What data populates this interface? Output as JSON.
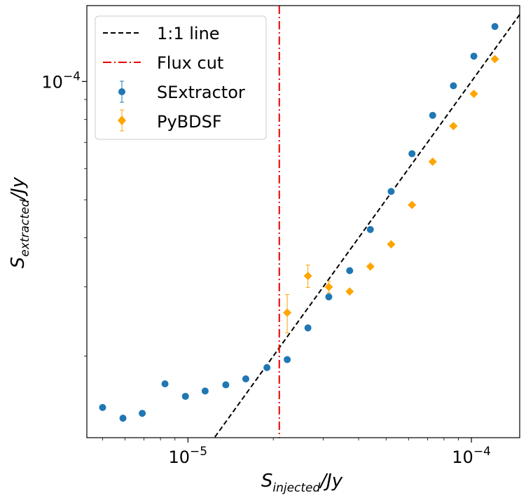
{
  "chart_data": {
    "type": "scatter",
    "title": "",
    "xlabel": {
      "base": "S",
      "sub": "injected",
      "unit": "/Jy"
    },
    "ylabel": {
      "base": "S",
      "sub": "extracted",
      "unit": "/Jy"
    },
    "x_scale": "log",
    "y_scale": "log",
    "xlim": [
      4.4e-06,
      0.000148
    ],
    "ylim": [
      1.24e-05,
      0.000156
    ],
    "grid": false,
    "legend_position": "upper-left",
    "x_tick_labels": [
      {
        "value": 1e-05,
        "base": "10",
        "exp": "−5"
      },
      {
        "value": 0.0001,
        "base": "10",
        "exp": "−4"
      }
    ],
    "y_tick_labels": [
      {
        "value": 0.0001,
        "base": "10",
        "exp": "−4"
      }
    ],
    "series": [
      {
        "name": "1:1 line",
        "kind": "line",
        "color": "#000000",
        "dash": "dashed",
        "x": [
          1.2e-05,
          0.00016
        ],
        "y": [
          1.2e-05,
          0.00016
        ]
      },
      {
        "name": "Flux cut",
        "kind": "vline",
        "color": "#e60000",
        "dash": "dashdot",
        "x": 2.1e-05
      },
      {
        "name": "SExtractor",
        "kind": "scatter",
        "marker": "circle",
        "color": "#1f77b4",
        "x": [
          5e-06,
          5.9e-06,
          6.9e-06,
          8.3e-06,
          9.8e-06,
          1.15e-05,
          1.36e-05,
          1.6e-05,
          1.9e-05,
          2.24e-05,
          2.65e-05,
          3.14e-05,
          3.72e-05,
          4.4e-05,
          5.21e-05,
          6.17e-05,
          7.3e-05,
          8.64e-05,
          0.000102,
          0.000121
        ],
        "y": [
          1.48e-05,
          1.39e-05,
          1.43e-05,
          1.7e-05,
          1.58e-05,
          1.63e-05,
          1.69e-05,
          1.75e-05,
          1.87e-05,
          1.96e-05,
          2.36e-05,
          2.83e-05,
          3.3e-05,
          4.2e-05,
          5.25e-05,
          6.55e-05,
          8.2e-05,
          9.75e-05,
          0.000116,
          0.000138
        ]
      },
      {
        "name": "PyBDSF",
        "kind": "scatter",
        "marker": "diamond",
        "color": "#ffa500",
        "x": [
          2.24e-05,
          2.65e-05,
          3.14e-05,
          3.72e-05,
          4.4e-05,
          5.21e-05,
          6.17e-05,
          7.3e-05,
          8.64e-05,
          0.000102,
          0.000121
        ],
        "y": [
          2.58e-05,
          3.2e-05,
          3e-05,
          2.92e-05,
          3.38e-05,
          3.85e-05,
          4.85e-05,
          6.25e-05,
          7.7e-05,
          9.3e-05,
          0.000114
        ],
        "yerr": [
          2.9e-06,
          2.1e-06,
          1e-06,
          0,
          0,
          0,
          0,
          0,
          0,
          0,
          0
        ]
      }
    ]
  }
}
